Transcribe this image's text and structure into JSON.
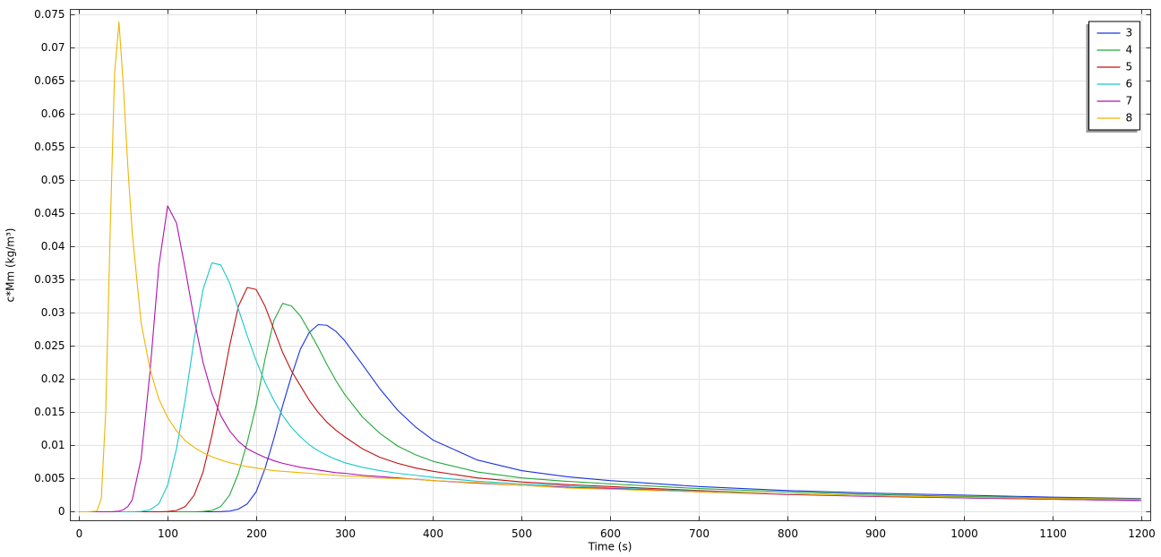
{
  "chart_data": {
    "type": "line",
    "xlabel": "Time (s)",
    "ylabel": "c*Mm (kg/m³)",
    "x": [
      0,
      10,
      20,
      25,
      30,
      35,
      40,
      45,
      50,
      55,
      60,
      70,
      80,
      90,
      100,
      110,
      120,
      130,
      140,
      150,
      160,
      170,
      180,
      190,
      200,
      210,
      220,
      230,
      240,
      250,
      260,
      270,
      280,
      290,
      300,
      320,
      340,
      360,
      380,
      400,
      450,
      500,
      550,
      600,
      700,
      800,
      900,
      1000,
      1100,
      1200
    ],
    "series": [
      {
        "name": "3",
        "color": "#1a33d9",
        "values": [
          0,
          0,
          0,
          0,
          0,
          0,
          0,
          0,
          0,
          0,
          0,
          0,
          0,
          0,
          0,
          0,
          0,
          0,
          0,
          0,
          2e-05,
          0.0001,
          0.0004,
          0.0012,
          0.003,
          0.0065,
          0.011,
          0.016,
          0.0205,
          0.0245,
          0.027,
          0.0282,
          0.0281,
          0.0272,
          0.0258,
          0.0222,
          0.0185,
          0.0153,
          0.0128,
          0.0108,
          0.0078,
          0.0062,
          0.0053,
          0.0047,
          0.0038,
          0.0032,
          0.0028,
          0.0025,
          0.0022,
          0.002
        ]
      },
      {
        "name": "4",
        "color": "#22a83a",
        "values": [
          0,
          0,
          0,
          0,
          0,
          0,
          0,
          0,
          0,
          0,
          0,
          0,
          0,
          0,
          0,
          0,
          0,
          0,
          5e-05,
          0.0002,
          0.0008,
          0.0025,
          0.0058,
          0.0105,
          0.016,
          0.023,
          0.0288,
          0.0314,
          0.031,
          0.0295,
          0.0272,
          0.0248,
          0.0222,
          0.0198,
          0.0177,
          0.0143,
          0.0118,
          0.0099,
          0.0086,
          0.0076,
          0.006,
          0.0051,
          0.0046,
          0.0042,
          0.0035,
          0.003,
          0.0026,
          0.0023,
          0.0021,
          0.0019
        ]
      },
      {
        "name": "5",
        "color": "#c01010",
        "values": [
          0,
          0,
          0,
          0,
          0,
          0,
          0,
          0,
          0,
          0,
          0,
          0,
          0,
          0,
          5e-05,
          0.0002,
          0.0008,
          0.0025,
          0.006,
          0.0115,
          0.018,
          0.025,
          0.031,
          0.0338,
          0.0335,
          0.031,
          0.0275,
          0.024,
          0.0212,
          0.019,
          0.0168,
          0.015,
          0.0135,
          0.0123,
          0.0113,
          0.0095,
          0.0082,
          0.0073,
          0.0066,
          0.0061,
          0.0051,
          0.0045,
          0.0041,
          0.0038,
          0.0032,
          0.0027,
          0.0024,
          0.0021,
          0.0019,
          0.0017
        ]
      },
      {
        "name": "6",
        "color": "#18c8c8",
        "values": [
          0,
          0,
          0,
          0,
          0,
          0,
          0,
          0,
          0,
          0,
          0,
          5e-05,
          0.0003,
          0.0012,
          0.004,
          0.0095,
          0.017,
          0.026,
          0.0335,
          0.0375,
          0.0372,
          0.0345,
          0.0305,
          0.0265,
          0.0228,
          0.0195,
          0.0168,
          0.0145,
          0.0127,
          0.0113,
          0.0101,
          0.0092,
          0.0085,
          0.0079,
          0.0074,
          0.0067,
          0.0062,
          0.0058,
          0.0055,
          0.0052,
          0.0046,
          0.0042,
          0.0039,
          0.0036,
          0.0031,
          0.0027,
          0.0024,
          0.0021,
          0.0019,
          0.0017
        ]
      },
      {
        "name": "7",
        "color": "#b010b0",
        "values": [
          0,
          0,
          0,
          0,
          0,
          0,
          5e-05,
          0.0001,
          0.0003,
          0.0008,
          0.0018,
          0.008,
          0.021,
          0.037,
          0.0461,
          0.0435,
          0.0365,
          0.029,
          0.0225,
          0.0178,
          0.0145,
          0.0122,
          0.0106,
          0.0095,
          0.0088,
          0.0082,
          0.0077,
          0.0073,
          0.007,
          0.0067,
          0.0065,
          0.0063,
          0.0061,
          0.0059,
          0.0058,
          0.0055,
          0.0053,
          0.0051,
          0.0049,
          0.0047,
          0.0043,
          0.004,
          0.0037,
          0.0035,
          0.003,
          0.0026,
          0.0023,
          0.0021,
          0.0019,
          0.0017
        ]
      },
      {
        "name": "8",
        "color": "#f0b400",
        "values": [
          0,
          0,
          0.0001,
          0.002,
          0.015,
          0.042,
          0.066,
          0.0738,
          0.064,
          0.052,
          0.042,
          0.0285,
          0.0215,
          0.017,
          0.0142,
          0.0122,
          0.0107,
          0.0097,
          0.0089,
          0.0083,
          0.0078,
          0.0074,
          0.0071,
          0.0068,
          0.0066,
          0.0064,
          0.0062,
          0.0061,
          0.006,
          0.0059,
          0.0058,
          0.0057,
          0.0056,
          0.0055,
          0.0054,
          0.0053,
          0.0051,
          0.005,
          0.0049,
          0.0047,
          0.0044,
          0.004,
          0.0036,
          0.0034,
          0.003,
          0.0027,
          0.0024,
          0.0022,
          0.002,
          0.0019
        ]
      }
    ],
    "xlim": [
      -10,
      1211
    ],
    "ylim": [
      -0.00135,
      0.0757
    ],
    "xticks": [
      0,
      100,
      200,
      300,
      400,
      500,
      600,
      700,
      800,
      900,
      1000,
      1100,
      1200
    ],
    "yticks": [
      0,
      0.005,
      0.01,
      0.015,
      0.02,
      0.025,
      0.03,
      0.035,
      0.04,
      0.045,
      0.05,
      0.055,
      0.06,
      0.065,
      0.07,
      0.075
    ],
    "grid": true,
    "legend": "top-right"
  }
}
